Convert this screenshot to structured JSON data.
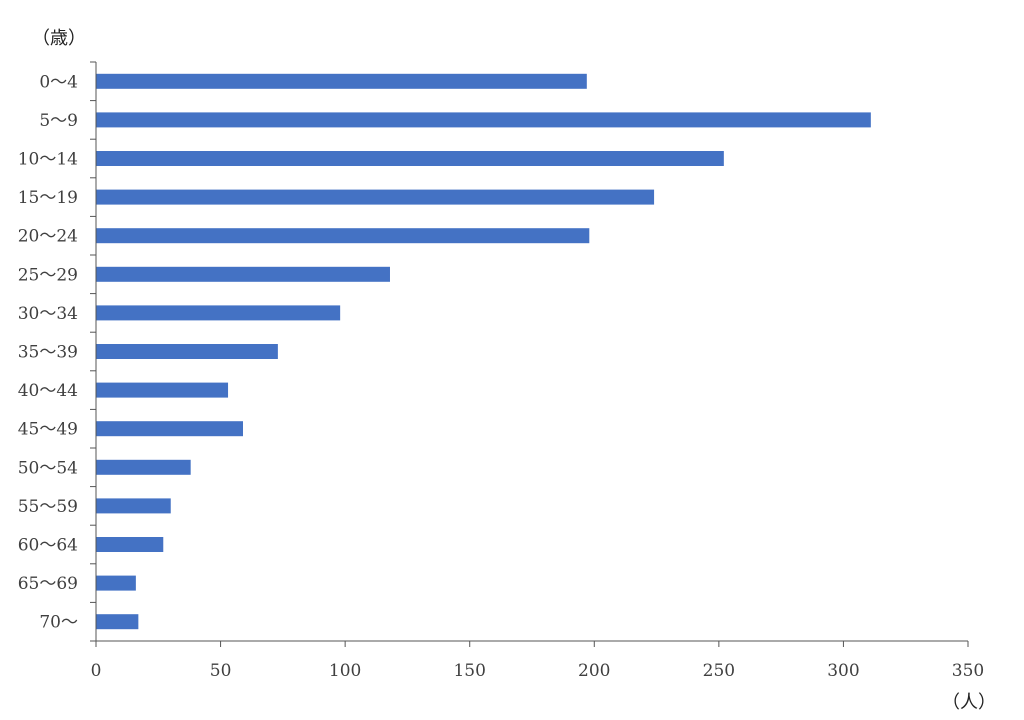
{
  "chart_data": {
    "type": "bar",
    "orientation": "horizontal",
    "y_unit_label": "（歳）",
    "x_unit_label": "（人）",
    "categories": [
      "0〜4",
      "5〜9",
      "10〜14",
      "15〜19",
      "20〜24",
      "25〜29",
      "30〜34",
      "35〜39",
      "40〜44",
      "45〜49",
      "50〜54",
      "55〜59",
      "60〜64",
      "65〜69",
      "70〜"
    ],
    "values": [
      197,
      311,
      252,
      224,
      198,
      118,
      98,
      73,
      53,
      59,
      38,
      30,
      27,
      16,
      17
    ],
    "xlim": [
      0,
      350
    ],
    "xticks": [
      0,
      50,
      100,
      150,
      200,
      250,
      300,
      350
    ],
    "grid": false,
    "legend": "none",
    "bar_color": "#4472C4"
  }
}
